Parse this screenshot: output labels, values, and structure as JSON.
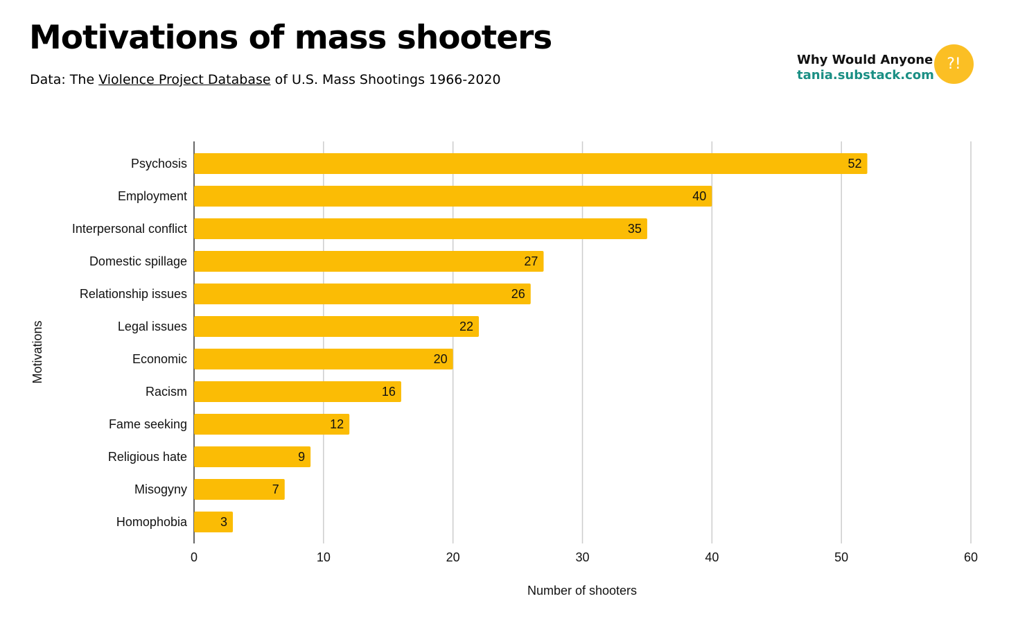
{
  "header": {
    "title": "Motivations of mass shooters",
    "subtitle_prefix": "Data: The ",
    "subtitle_link": "Violence Project Database",
    "subtitle_suffix": " of U.S. Mass Shootings 1966-2020"
  },
  "brand": {
    "name": "Why Would Anyone",
    "url": "tania.substack.com",
    "badge": "?!"
  },
  "colors": {
    "bar": "#fbbc05",
    "grid": "#cccccc",
    "axis": "#333333"
  },
  "chart_data": {
    "type": "bar",
    "orientation": "horizontal",
    "categories": [
      "Psychosis",
      "Employment",
      "Interpersonal conflict",
      "Domestic spillage",
      "Relationship issues",
      "Legal issues",
      "Economic",
      "Racism",
      "Fame seeking",
      "Religious hate",
      "Misogyny",
      "Homophobia"
    ],
    "values": [
      52,
      40,
      35,
      27,
      26,
      22,
      20,
      16,
      12,
      9,
      7,
      3
    ],
    "xlabel": "Number of shooters",
    "ylabel": "Motivations",
    "xlim": [
      0,
      60
    ],
    "xticks": [
      0,
      10,
      20,
      30,
      40,
      50,
      60
    ],
    "grid": true,
    "data_labels": true
  }
}
